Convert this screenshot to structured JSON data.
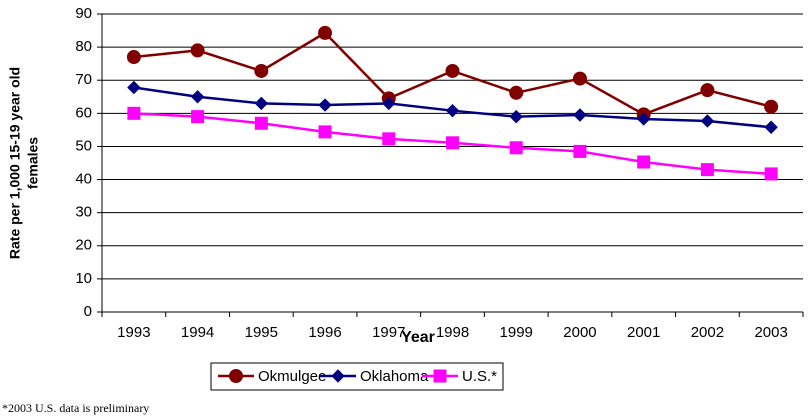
{
  "chart_data": {
    "type": "line",
    "x_label": "Year",
    "y_label": [
      "Rate per 1,000 15-19 year old",
      "females"
    ],
    "note": "*2003 U.S. data is preliminary",
    "categories": [
      "1993",
      "1994",
      "1995",
      "1996",
      "1997",
      "1998",
      "1999",
      "2000",
      "2001",
      "2002",
      "2003"
    ],
    "series": [
      {
        "name": "Okmulgee",
        "color": "#800000",
        "marker": "circle",
        "values": [
          77,
          79,
          72.8,
          84.3,
          64.5,
          72.8,
          66.2,
          70.5,
          59.7,
          67,
          62
        ]
      },
      {
        "name": "Oklahoma",
        "color": "#000080",
        "marker": "diamond",
        "values": [
          67.8,
          65,
          63,
          62.5,
          63,
          60.8,
          59,
          59.5,
          58.3,
          57.7,
          55.8
        ]
      },
      {
        "name": "U.S.*",
        "color": "#ff00ff",
        "marker": "square",
        "values": [
          60,
          59,
          57,
          54.4,
          52.3,
          51.1,
          49.6,
          48.5,
          45.3,
          43,
          41.7
        ]
      }
    ],
    "ylim": [
      0,
      90
    ],
    "yticks": [
      0,
      10,
      20,
      30,
      40,
      50,
      60,
      70,
      80,
      90
    ],
    "grid": true
  }
}
